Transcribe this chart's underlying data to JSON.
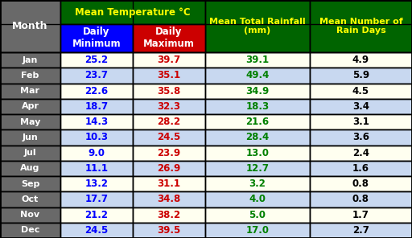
{
  "months": [
    "Jan",
    "Feb",
    "Mar",
    "Apr",
    "May",
    "Jun",
    "Jul",
    "Aug",
    "Sep",
    "Oct",
    "Nov",
    "Dec"
  ],
  "daily_min": [
    25.2,
    23.7,
    22.6,
    18.7,
    14.3,
    10.3,
    9.0,
    11.1,
    13.2,
    17.7,
    21.2,
    24.5
  ],
  "daily_max": [
    39.7,
    35.1,
    35.8,
    32.3,
    28.2,
    24.5,
    23.9,
    26.9,
    31.1,
    34.8,
    38.2,
    39.5
  ],
  "rainfall": [
    39.1,
    49.4,
    34.9,
    18.3,
    21.6,
    28.4,
    13.0,
    12.7,
    3.2,
    4.0,
    5.0,
    17.0
  ],
  "rain_days": [
    4.9,
    5.9,
    4.5,
    3.4,
    3.1,
    3.6,
    2.4,
    1.6,
    0.8,
    0.8,
    1.7,
    2.7
  ],
  "header_bg": "#006400",
  "header_text": "#FFFF00",
  "min_bg": "#0000FF",
  "min_text": "#FFFFFF",
  "max_bg": "#CC0000",
  "max_text": "#FFFFFF",
  "month_col_bg": "#696969",
  "month_col_text": "#FFFFFF",
  "row_odd_bg": "#FFFFF0",
  "row_even_bg": "#C8D8F0",
  "data_min_text": "#0000FF",
  "data_max_text": "#CC0000",
  "data_rainfall_text": "#008000",
  "data_raindays_text": "#000000",
  "border_color": "#000000",
  "figsize": [
    5.12,
    2.96
  ],
  "dpi": 100
}
